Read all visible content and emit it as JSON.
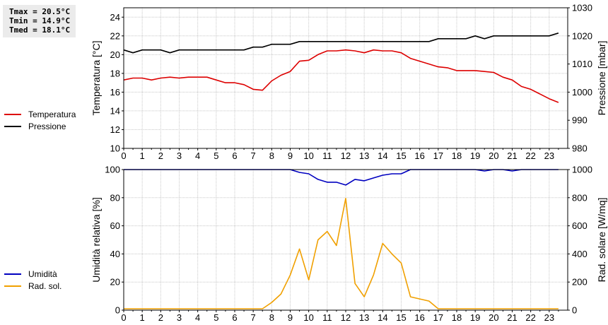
{
  "stats": {
    "tmax": "Tmax = 20.5°C",
    "tmin": "Tmin = 14.9°C",
    "tmed": "Tmed = 18.1°C"
  },
  "legend_top": [
    {
      "label": "Temperatura",
      "color": "#dd0000"
    },
    {
      "label": "Pressione",
      "color": "#000000"
    }
  ],
  "legend_bottom": [
    {
      "label": "Umidità",
      "color": "#0000c0"
    },
    {
      "label": "Rad. sol.",
      "color": "#f0a000"
    }
  ],
  "chart_data": [
    {
      "type": "line",
      "xlim": [
        0,
        24
      ],
      "xticks": [
        "0",
        "1",
        "2",
        "3",
        "4",
        "5",
        "6",
        "7",
        "8",
        "9",
        "10",
        "11",
        "12",
        "13",
        "14",
        "15",
        "16",
        "17",
        "18",
        "19",
        "20",
        "21",
        "22",
        "23"
      ],
      "ylabel": "Temperatura [°C]",
      "ylim": [
        10,
        25
      ],
      "yticks": [
        "10",
        "12",
        "14",
        "16",
        "18",
        "20",
        "22",
        "24"
      ],
      "y2label": "Pressione [mbar]",
      "y2lim": [
        980,
        1030
      ],
      "y2ticks": [
        "980",
        "990",
        "1000",
        "1010",
        "1020",
        "1030"
      ],
      "grid": true,
      "series": [
        {
          "name": "Temperatura",
          "axis": "left",
          "color": "#dd0000",
          "x": [
            0,
            0.5,
            1,
            1.5,
            2,
            2.5,
            3,
            3.5,
            4,
            4.5,
            5,
            5.5,
            6,
            6.5,
            7,
            7.5,
            8,
            8.5,
            9,
            9.5,
            10,
            10.5,
            11,
            11.5,
            12,
            12.5,
            13,
            13.5,
            14,
            14.5,
            15,
            15.5,
            16,
            16.5,
            17,
            17.5,
            18,
            18.5,
            19,
            19.5,
            20,
            20.5,
            21,
            21.5,
            22,
            22.5,
            23,
            23.5
          ],
          "values": [
            17.3,
            17.5,
            17.5,
            17.3,
            17.5,
            17.6,
            17.5,
            17.6,
            17.6,
            17.6,
            17.3,
            17.0,
            17.0,
            16.8,
            16.3,
            16.2,
            17.2,
            17.8,
            18.2,
            19.3,
            19.4,
            20.0,
            20.4,
            20.4,
            20.5,
            20.4,
            20.2,
            20.5,
            20.4,
            20.4,
            20.2,
            19.6,
            19.3,
            19.0,
            18.7,
            18.6,
            18.3,
            18.3,
            18.3,
            18.2,
            18.1,
            17.6,
            17.3,
            16.6,
            16.3,
            15.8,
            15.3,
            14.9
          ]
        },
        {
          "name": "Pressione",
          "axis": "right",
          "color": "#000000",
          "x": [
            0,
            0.5,
            1,
            1.5,
            2,
            2.5,
            3,
            3.5,
            4,
            4.5,
            5,
            5.5,
            6,
            6.5,
            7,
            7.5,
            8,
            8.5,
            9,
            9.5,
            10,
            10.5,
            11,
            11.5,
            12,
            12.5,
            13,
            13.5,
            14,
            14.5,
            15,
            15.5,
            16,
            16.5,
            17,
            17.5,
            18,
            18.5,
            19,
            19.5,
            20,
            20.5,
            21,
            21.5,
            22,
            22.5,
            23,
            23.5
          ],
          "values": [
            1015,
            1014,
            1015,
            1015,
            1015,
            1014,
            1015,
            1015,
            1015,
            1015,
            1015,
            1015,
            1015,
            1015,
            1016,
            1016,
            1017,
            1017,
            1017,
            1018,
            1018,
            1018,
            1018,
            1018,
            1018,
            1018,
            1018,
            1018,
            1018,
            1018,
            1018,
            1018,
            1018,
            1018,
            1019,
            1019,
            1019,
            1019,
            1020,
            1019,
            1020,
            1020,
            1020,
            1020,
            1020,
            1020,
            1020,
            1021
          ]
        }
      ]
    },
    {
      "type": "line",
      "xlim": [
        0,
        24
      ],
      "xticks": [
        "0",
        "1",
        "2",
        "3",
        "4",
        "5",
        "6",
        "7",
        "8",
        "9",
        "10",
        "11",
        "12",
        "13",
        "14",
        "15",
        "16",
        "17",
        "18",
        "19",
        "20",
        "21",
        "22",
        "23"
      ],
      "ylabel": "Umidità relativa [%]",
      "ylim": [
        0,
        100
      ],
      "yticks": [
        "0",
        "20",
        "40",
        "60",
        "80",
        "100"
      ],
      "y2label": "Rad. solare [W/mq]",
      "y2lim": [
        0,
        1000
      ],
      "y2ticks": [
        "0",
        "200",
        "400",
        "600",
        "800",
        "1000"
      ],
      "grid": true,
      "series": [
        {
          "name": "Umidità",
          "axis": "left",
          "color": "#0000c0",
          "x": [
            0,
            1,
            2,
            3,
            4,
            5,
            6,
            7,
            8,
            8.5,
            9,
            9.5,
            10,
            10.5,
            11,
            11.5,
            12,
            12.5,
            13,
            13.5,
            14,
            14.5,
            15,
            15.5,
            16,
            17,
            18,
            18.5,
            19,
            19.5,
            20,
            20.5,
            21,
            21.5,
            22,
            23,
            23.5
          ],
          "values": [
            100,
            100,
            100,
            100,
            100,
            100,
            100,
            100,
            100,
            100,
            100,
            98,
            97,
            93,
            91,
            91,
            89,
            93,
            92,
            94,
            96,
            97,
            97,
            100,
            100,
            100,
            100,
            100,
            100,
            99,
            100,
            100,
            99,
            100,
            100,
            100,
            100
          ]
        },
        {
          "name": "Rad. sol.",
          "axis": "right",
          "color": "#f0a000",
          "x": [
            0,
            0.5,
            1,
            1.5,
            2,
            2.5,
            3,
            3.5,
            4,
            4.5,
            5,
            5.5,
            6,
            6.5,
            7,
            7.5,
            8,
            8.5,
            9,
            9.5,
            10,
            10.5,
            11,
            11.5,
            12,
            12.5,
            13,
            13.5,
            14,
            14.5,
            15,
            15.5,
            16,
            16.5,
            17,
            17.5,
            18,
            18.5,
            19,
            19.5,
            20,
            20.5,
            21,
            21.5,
            22,
            22.5,
            23,
            23.5
          ],
          "values": [
            10,
            10,
            10,
            10,
            10,
            10,
            10,
            10,
            10,
            10,
            10,
            10,
            10,
            10,
            10,
            10,
            55,
            115,
            250,
            435,
            215,
            500,
            560,
            460,
            795,
            190,
            95,
            250,
            475,
            400,
            335,
            95,
            80,
            65,
            10,
            10,
            10,
            10,
            10,
            10,
            10,
            10,
            10,
            10,
            10,
            10,
            10,
            10
          ]
        }
      ]
    }
  ]
}
